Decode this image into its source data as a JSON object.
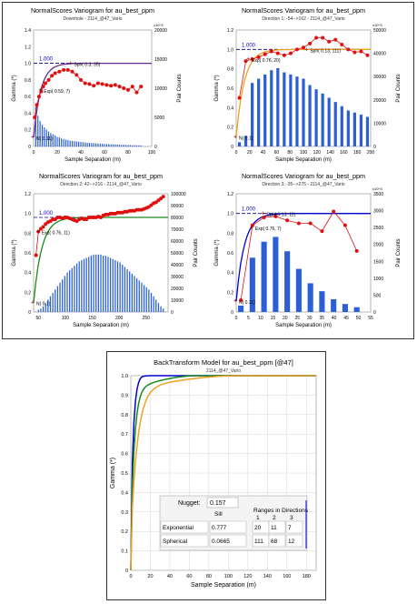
{
  "chart_data": [
    {
      "type": "bar+line",
      "title": "NormalScores  Variogram for au_best_ppm",
      "subtitle": "Downhole - 2114_@47_Vario",
      "xlabel": "Sample Separation (m)",
      "ylabel": "Gamma (*)",
      "y2label": "Pair Counts",
      "xlim": [
        0,
        110
      ],
      "ylim": [
        0,
        1.4
      ],
      "y2lim": [
        0,
        22000
      ],
      "xticks": [
        "0",
        "20",
        "40",
        "60",
        "80",
        "100"
      ],
      "yticks": [
        "0",
        "0.2",
        "0.4",
        "0.6",
        "0.8",
        "1.0",
        "1.2",
        "1.4"
      ],
      "y2ticks": [
        "0",
        "5000",
        "10000",
        "15000",
        "20000"
      ],
      "y2_exponent_label": "x10^3",
      "sill_label": "1.000",
      "annotations": [
        {
          "text": "Sph( 0.3, 35)",
          "x": 35,
          "y": 1.0
        },
        {
          "text": "Exp( 0.59, 7)",
          "x": 7,
          "y": 0.68
        },
        {
          "text": "N( 0.11)",
          "x": 0,
          "y": 0.11
        }
      ],
      "bars": {
        "x": [
          2,
          4,
          6,
          8,
          10,
          12,
          14,
          16,
          18,
          20,
          22,
          24,
          26,
          28,
          30,
          32,
          34,
          36,
          38,
          40,
          42,
          44,
          46,
          48,
          50,
          52,
          54,
          56,
          58,
          60,
          62,
          64,
          66,
          68,
          70,
          72,
          74,
          76,
          78,
          80,
          82,
          84,
          86,
          88,
          90,
          92,
          94,
          96,
          98,
          100
        ],
        "values": [
          7500,
          5800,
          4800,
          4100,
          3600,
          3200,
          2800,
          2500,
          2300,
          2100,
          1800,
          1700,
          1500,
          1400,
          1300,
          1200,
          1100,
          1050,
          1000,
          950,
          900,
          850,
          800,
          760,
          720,
          680,
          650,
          620,
          590,
          560,
          530,
          500,
          470,
          450,
          430,
          410,
          390,
          370,
          350,
          330,
          310,
          290,
          280,
          260,
          250,
          240,
          230,
          220,
          210,
          200
        ]
      },
      "experimental": {
        "x": [
          1,
          3,
          5,
          7,
          9,
          11,
          14,
          17,
          20,
          24,
          28,
          32,
          36,
          40,
          44,
          48,
          52,
          56,
          60,
          64,
          68,
          72,
          76,
          80,
          84,
          88,
          92,
          96,
          100
        ],
        "y": [
          0.35,
          0.5,
          0.6,
          0.66,
          0.72,
          0.76,
          0.8,
          0.85,
          0.88,
          0.9,
          0.92,
          0.92,
          0.9,
          0.86,
          0.8,
          0.76,
          0.75,
          0.73,
          0.76,
          0.75,
          0.74,
          0.73,
          0.74,
          0.72,
          0.7,
          0.68,
          0.72,
          0.65,
          0.72
        ]
      },
      "model": {
        "nugget": 0.11,
        "sill": 1.0
      }
    },
    {
      "type": "bar+line",
      "title": "NormalScores  Variogram for au_best_ppm",
      "subtitle": "Direction 1: -54-->162 - 2114_@47_Vario",
      "xlabel": "Sample Separation (m)",
      "ylabel": "Gamma (*)",
      "y2label": "Pair Counts",
      "xlim": [
        0,
        210
      ],
      "ylim": [
        0,
        1.2
      ],
      "y2lim": [
        0,
        55000
      ],
      "xticks": [
        "0",
        "20",
        "40",
        "60",
        "80",
        "100",
        "120",
        "140",
        "160",
        "180",
        "200"
      ],
      "yticks": [
        "0",
        "0.2",
        "0.4",
        "0.6",
        "0.8",
        "1.0",
        "1.2"
      ],
      "y2ticks": [
        "0",
        "10000",
        "20000",
        "30000",
        "40000",
        "50000"
      ],
      "y2_exponent_label": "x10^3",
      "sill_label": "1.000",
      "annotations": [
        {
          "text": "Sph( 0.13, 111)",
          "x": 111,
          "y": 1.0
        },
        {
          "text": "Exp( 0.76, 20)",
          "x": 20,
          "y": 0.9
        },
        {
          "text": "N( 0.1)",
          "x": 0,
          "y": 0.1
        }
      ],
      "bars": {
        "x": [
          5,
          15,
          25,
          35,
          45,
          55,
          65,
          75,
          85,
          95,
          105,
          115,
          125,
          135,
          145,
          155,
          165,
          175,
          185,
          195,
          205
        ],
        "values": [
          2000,
          5000,
          30000,
          32000,
          34000,
          36000,
          37000,
          35000,
          34000,
          33000,
          32000,
          29000,
          27000,
          25000,
          23000,
          21000,
          19000,
          17000,
          16000,
          15000,
          14000
        ]
      },
      "experimental": {
        "x": [
          5,
          15,
          25,
          35,
          45,
          55,
          65,
          75,
          85,
          95,
          105,
          115,
          125,
          135,
          145,
          155,
          165,
          175,
          185,
          195,
          205
        ],
        "y": [
          0.5,
          0.88,
          0.9,
          0.92,
          0.95,
          0.98,
          0.96,
          0.94,
          0.96,
          1.0,
          1.02,
          1.06,
          1.12,
          1.12,
          1.08,
          1.1,
          1.05,
          1.0,
          0.97,
          0.98,
          0.94
        ]
      },
      "model": {
        "nugget": 0.1,
        "sill": 1.0
      }
    },
    {
      "type": "bar+line",
      "title": "NormalScores  Variogram for au_best_ppm",
      "subtitle": "Direction 2: 42-->216 - 2114_@47_Vario",
      "xlabel": "Sample Separation (m)",
      "ylabel": "Gamma (*)",
      "y2label": "Pair Counts",
      "xlim": [
        0,
        280
      ],
      "ylim": [
        0,
        1.25
      ],
      "y2lim": [
        0,
        105000
      ],
      "xticks": [
        "50",
        "100",
        "150",
        "200",
        "250"
      ],
      "yticks": [
        "0",
        "0.2",
        "0.4",
        "0.6",
        "0.8",
        "1.0",
        "1.2"
      ],
      "y2ticks": [
        "0",
        "10000",
        "20000",
        "30000",
        "40000",
        "50000",
        "60000",
        "70000",
        "80000",
        "90000",
        "100000"
      ],
      "sill_label": "1.000",
      "annotations": [
        {
          "text": "Exp( 0.76, 11)",
          "x": 11,
          "y": 0.85
        },
        {
          "text": "N( 0.1)",
          "x": 0,
          "y": 0.1
        }
      ],
      "bars": {
        "x": [
          10,
          15,
          20,
          25,
          30,
          35,
          40,
          45,
          50,
          55,
          60,
          65,
          70,
          75,
          80,
          85,
          90,
          95,
          100,
          105,
          110,
          115,
          120,
          125,
          130,
          135,
          140,
          145,
          150,
          155,
          160,
          165,
          170,
          175,
          180,
          185,
          190,
          195,
          200,
          205,
          210,
          215,
          220,
          225,
          230,
          235,
          240,
          245,
          250,
          255,
          260,
          265,
          270
        ],
        "values": [
          2000,
          3000,
          5000,
          8000,
          11000,
          14000,
          17000,
          20000,
          23000,
          26000,
          29000,
          32000,
          35000,
          37000,
          39000,
          41000,
          43000,
          45000,
          46000,
          47000,
          48000,
          49000,
          50000,
          51000,
          51000,
          51000,
          51000,
          50000,
          50000,
          49000,
          48000,
          47000,
          46000,
          45000,
          44000,
          42000,
          40000,
          38000,
          36000,
          34000,
          32000,
          30000,
          28000,
          26000,
          24000,
          22000,
          20000,
          17000,
          14000,
          11000,
          8000,
          5000,
          3000
        ]
      },
      "experimental": {
        "x": [
          5,
          10,
          15,
          20,
          25,
          30,
          35,
          40,
          45,
          50,
          55,
          60,
          65,
          70,
          75,
          80,
          85,
          90,
          95,
          100,
          105,
          110,
          115,
          120,
          125,
          130,
          135,
          140,
          145,
          150,
          155,
          160,
          165,
          170,
          175,
          180,
          185,
          190,
          195,
          200,
          205,
          210,
          215,
          220,
          225,
          230,
          235,
          240,
          245,
          250,
          255,
          260,
          265,
          270
        ],
        "y": [
          0.6,
          0.85,
          0.88,
          0.9,
          0.93,
          0.95,
          0.96,
          0.98,
          0.98,
          1.0,
          1.0,
          0.99,
          1.0,
          1.0,
          0.99,
          0.98,
          0.97,
          0.96,
          0.98,
          0.99,
          0.98,
          0.98,
          1.0,
          1.0,
          1.0,
          1.0,
          1.01,
          1.0,
          1.02,
          1.03,
          1.03,
          1.04,
          1.04,
          1.04,
          1.05,
          1.05,
          1.05,
          1.06,
          1.06,
          1.07,
          1.07,
          1.07,
          1.08,
          1.08,
          1.08,
          1.09,
          1.1,
          1.11,
          1.13,
          1.15,
          1.16,
          1.18,
          1.2,
          1.22
        ]
      },
      "model": {
        "nugget": 0.1,
        "sill": 1.0
      }
    },
    {
      "type": "bar+line",
      "title": "NormalScores  Variogram for au_best_ppm",
      "subtitle": "Direction 3: -35-->275 - 2114_@47_Vario",
      "xlabel": "Sample Separation (m)",
      "ylabel": "Gamma (*)",
      "y2label": "Pair Counts",
      "xlim": [
        0,
        58
      ],
      "ylim": [
        0,
        1.2
      ],
      "y2lim": [
        0,
        3700
      ],
      "xticks": [
        "0",
        "5",
        "10",
        "15",
        "20",
        "25",
        "30",
        "35",
        "40",
        "45",
        "50",
        "55"
      ],
      "yticks": [
        "0",
        "0.2",
        "0.4",
        "0.6",
        "0.8",
        "1.0",
        "1.2"
      ],
      "y2ticks": [
        "0",
        "500",
        "1000",
        "1500",
        "2000",
        "2500",
        "3000",
        "3500"
      ],
      "y2_exponent_label": "x10^3",
      "sill_label": "1.000",
      "annotations": [
        {
          "text": "Sph( 0.13, 12)",
          "x": 12,
          "y": 1.0
        },
        {
          "text": "Exp( 0.76, 7)",
          "x": 7,
          "y": 0.86
        },
        {
          "text": "N( 0.11)",
          "x": 0,
          "y": 0.11
        }
      ],
      "bars": {
        "x": [
          2,
          7,
          12,
          17,
          22,
          27,
          32,
          37,
          42,
          47,
          52
        ],
        "values": [
          200,
          1700,
          2200,
          2350,
          1900,
          1350,
          900,
          650,
          400,
          250,
          150
        ]
      },
      "experimental": {
        "x": [
          2,
          7,
          12,
          17,
          22,
          27,
          32,
          37,
          42,
          47,
          52
        ],
        "y": [
          0.12,
          0.88,
          0.96,
          0.97,
          0.93,
          0.9,
          0.9,
          0.82,
          1.02,
          0.88,
          0.62
        ]
      },
      "model": {
        "nugget": 0.11,
        "sill": 1.0
      }
    },
    {
      "type": "line",
      "title": "BackTransform Model for au_best_ppm [@47]",
      "subtitle": "2114_@47_Vario",
      "xlabel": "Sample Separation (m)",
      "ylabel": "Gamma (*)",
      "xlim": [
        0,
        190
      ],
      "ylim": [
        0,
        1.0
      ],
      "xticks": [
        "0",
        "20",
        "40",
        "60",
        "80",
        "100",
        "120",
        "140",
        "160",
        "180"
      ],
      "yticks": [
        "0",
        "0.1",
        "0.2",
        "0.3",
        "0.4",
        "0.5",
        "0.6",
        "0.7",
        "0.8",
        "0.9",
        "1.0"
      ],
      "model_table": {
        "nugget_label": "Nugget:",
        "nugget_value": "0.157",
        "header": [
          "",
          "Sill",
          "Ranges in Directions"
        ],
        "directions": [
          "1",
          "2",
          "3"
        ],
        "rows": [
          {
            "name": "Exponential",
            "sill": "0.777",
            "r1": "20",
            "r2": "11",
            "r3": "7"
          },
          {
            "name": "Spherical",
            "sill": "0.0665",
            "r1": "111",
            "r2": "68",
            "r3": "12"
          }
        ]
      },
      "series": [
        {
          "color": "#0000cc",
          "range_exp": 7,
          "range_sph": 12
        },
        {
          "color": "#1a8a1a",
          "range_exp": 11,
          "range_sph": 68
        },
        {
          "color": "#f0a020",
          "range_exp": 20,
          "range_sph": 111
        }
      ]
    }
  ],
  "colors": {
    "bars": "#2a5fd6",
    "points": "#e01010",
    "sill": "#000080"
  }
}
